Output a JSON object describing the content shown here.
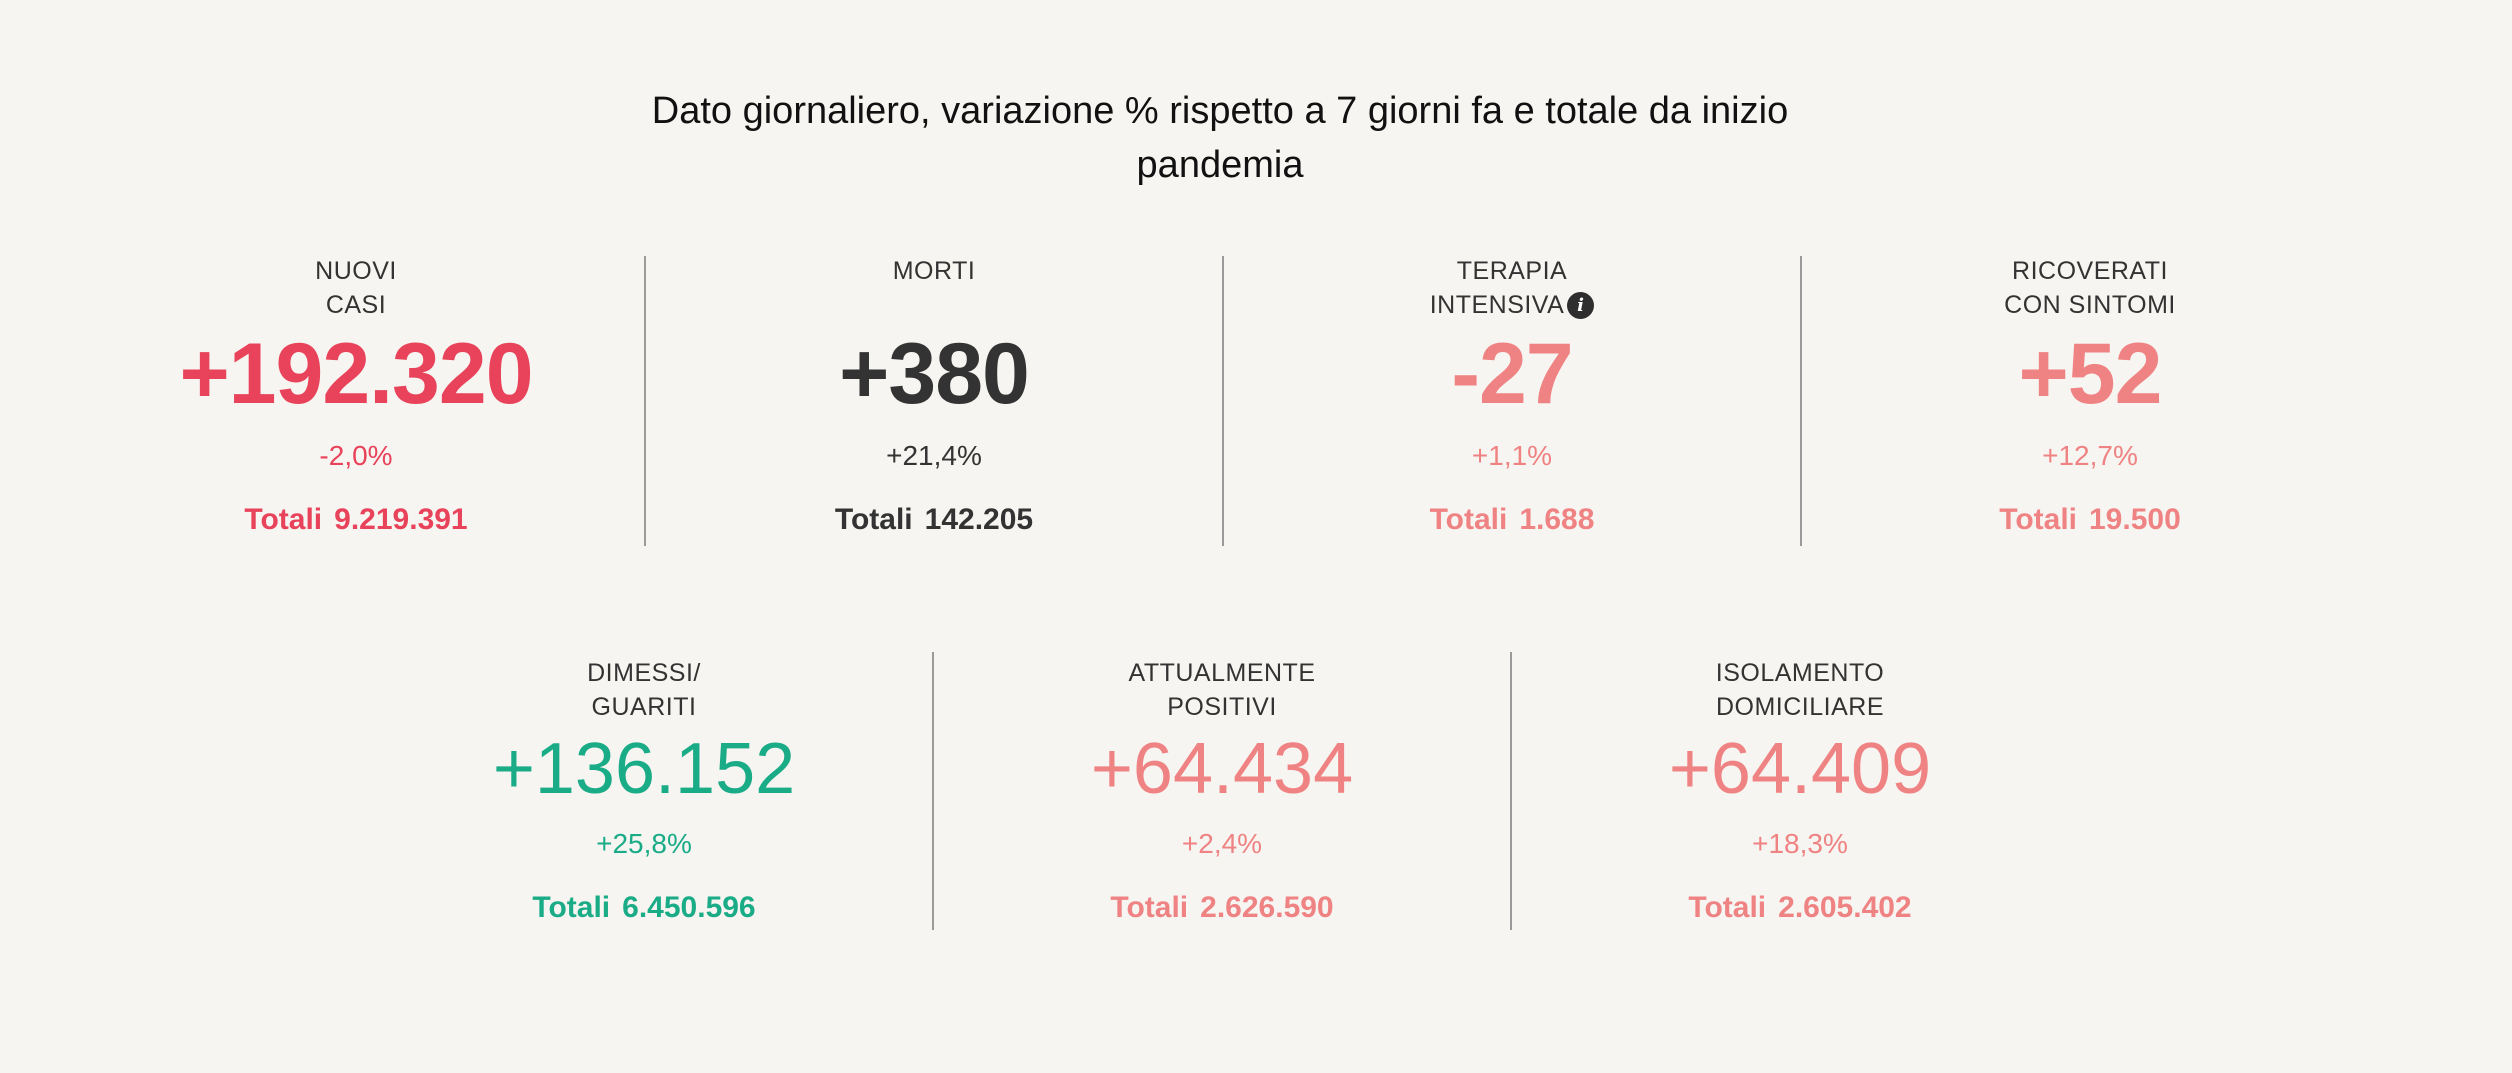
{
  "header": {
    "title_line1": "Dato giornaliero, variazione % rispetto a 7 giorni fa e totale da inizio",
    "title_line2": "pandemia"
  },
  "colors": {
    "red": "#e8435a",
    "dark": "#333333",
    "pink": "#ef8383",
    "green": "#1aab87",
    "background": "#f7f5f1"
  },
  "stats": [
    {
      "label_line1": "NUOVI",
      "label_line2": "CASI",
      "value": "+192.320",
      "pct": "-2,0%",
      "total_label": "Totali",
      "total_value": "9.219.391"
    },
    {
      "label_line1": "MORTI",
      "label_line2": "",
      "value": "+380",
      "pct": "+21,4%",
      "total_label": "Totali",
      "total_value": "142.205"
    },
    {
      "label_line1": "TERAPIA",
      "label_line2": "INTENSIVA",
      "info_icon": "info-icon",
      "value": "-27",
      "pct": "+1,1%",
      "total_label": "Totali",
      "total_value": "1.688"
    },
    {
      "label_line1": "RICOVERATI",
      "label_line2": "CON SINTOMI",
      "value": "+52",
      "pct": "+12,7%",
      "total_label": "Totali",
      "total_value": "19.500"
    },
    {
      "label_line1": "DIMESSI/",
      "label_line2": "GUARITI",
      "value": "+136.152",
      "pct": "+25,8%",
      "total_label": "Totali",
      "total_value": "6.450.596"
    },
    {
      "label_line1": "ATTUALMENTE",
      "label_line2": "POSITIVI",
      "value": "+64.434",
      "pct": "+2,4%",
      "total_label": "Totali",
      "total_value": "2.626.590"
    },
    {
      "label_line1": "ISOLAMENTO",
      "label_line2": "DOMICILIARE",
      "value": "+64.409",
      "pct": "+18,3%",
      "total_label": "Totali",
      "total_value": "2.605.402"
    }
  ]
}
